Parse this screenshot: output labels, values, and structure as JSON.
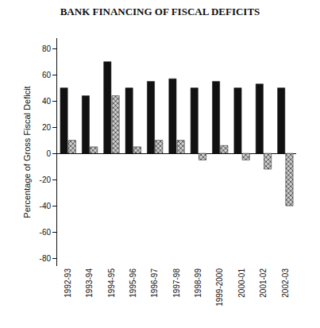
{
  "chart_data": {
    "type": "bar",
    "title": "BANK FINANCING OF FISCAL DEFICITS",
    "y_label": "Percentage of Gross Fiscal Deficit",
    "categories": [
      "1992-93",
      "1993-94",
      "1994-95",
      "1995-96",
      "1996-97",
      "1997-98",
      "1998-99",
      "1999-2000",
      "2000-01",
      "2001-02",
      "2002-03"
    ],
    "series": [
      {
        "color": "#111111",
        "values": [
          50,
          44,
          70,
          50,
          55,
          57,
          50,
          55,
          50,
          53,
          50
        ]
      },
      {
        "color": "#8c8c8c",
        "values": [
          10,
          5,
          44,
          5,
          10,
          10,
          -5,
          6,
          -5,
          -12,
          -40
        ]
      }
    ],
    "ylim": [
      -86,
      88
    ],
    "yticks": [
      -80,
      -60,
      -40,
      -20,
      0,
      20,
      40,
      60,
      80
    ],
    "grid": false
  }
}
